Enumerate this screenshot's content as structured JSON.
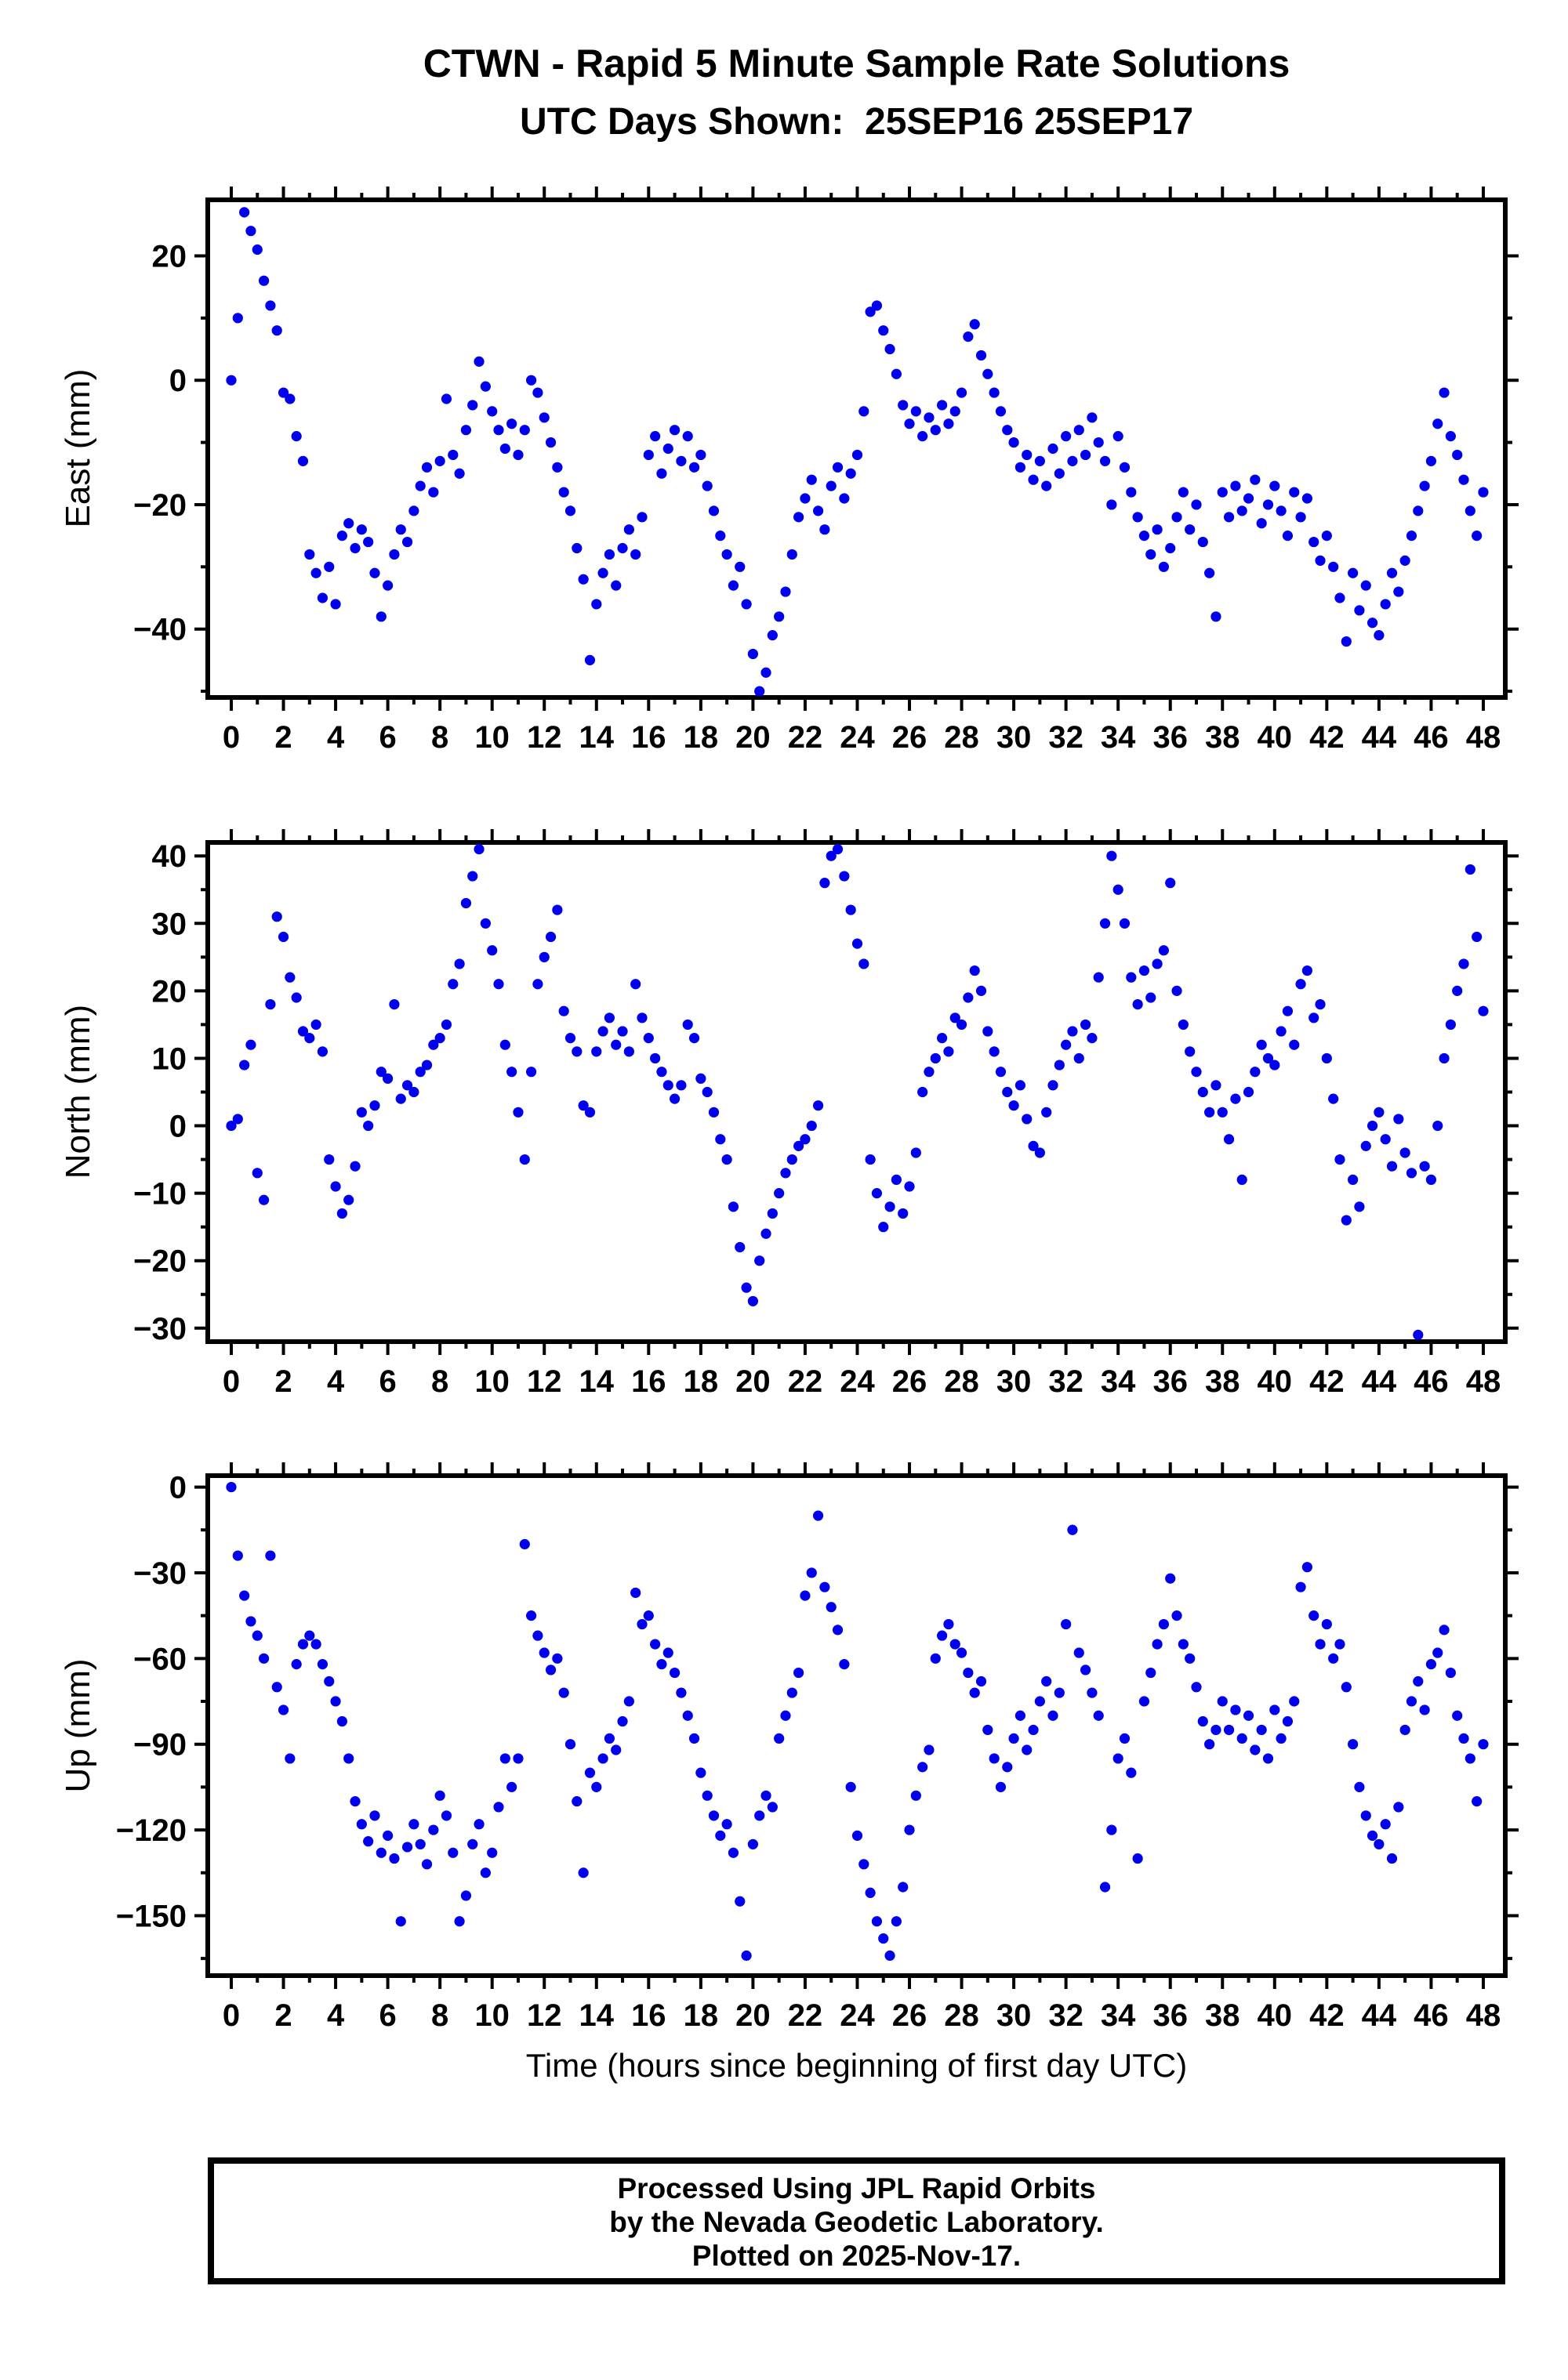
{
  "header": {
    "title": "CTWN - Rapid 5 Minute Sample Rate Solutions",
    "subtitle": "UTC Days Shown:  25SEP16 25SEP17"
  },
  "footer": {
    "line1": "Processed Using JPL Rapid Orbits",
    "line2": "by the Nevada Geodetic Laboratory.",
    "line3": "Plotted on 2025-Nov-17."
  },
  "chart_data": {
    "type": "scatter",
    "station": "CTWN",
    "xlabel": "Time (hours since beginning of first day UTC)",
    "x_range": [
      0,
      48
    ],
    "x_major_tick_step": 2,
    "x_minor_tick_step": 1,
    "sample_interval_hours": 0.25,
    "grid": "off",
    "marker": {
      "shape": "circle",
      "color": "#0000EE",
      "radius_px": 6.6
    },
    "panels": [
      {
        "id": "east",
        "ylabel": "East (mm)",
        "ylim": [
          -51,
          29
        ],
        "yticks": [
          20,
          0,
          -20,
          -40
        ],
        "y_minor_step": 10,
        "end_value": -18,
        "hourly_values": [
          [
            0,
            10,
            27,
            24
          ],
          [
            21,
            16,
            12,
            8
          ],
          [
            -2,
            -3,
            -9,
            -13
          ],
          [
            -28,
            -31,
            -35,
            -30
          ],
          [
            -36,
            -25,
            -23,
            -27
          ],
          [
            -24,
            -26,
            -31,
            -38
          ],
          [
            -33,
            -28,
            -24,
            -26
          ],
          [
            -21,
            -17,
            -14,
            -18
          ],
          [
            -13,
            -3,
            -12,
            -15
          ],
          [
            -8,
            -4,
            3,
            -1
          ],
          [
            -5,
            -8,
            -11,
            -7
          ],
          [
            -12,
            -8,
            0,
            -2
          ],
          [
            -6,
            -10,
            -14,
            -18
          ],
          [
            -21,
            -27,
            -32,
            -45
          ],
          [
            -36,
            -31,
            -28,
            -33
          ],
          [
            -27,
            -24,
            -28,
            -22
          ],
          [
            -12,
            -9,
            -15,
            -11
          ],
          [
            -8,
            -13,
            -9,
            -14
          ],
          [
            -12,
            -17,
            -21,
            -25
          ],
          [
            -28,
            -33,
            -30,
            -36
          ],
          [
            -44,
            -50,
            -47,
            -41
          ],
          [
            -38,
            -34,
            -28,
            -22
          ],
          [
            -19,
            -16,
            -21,
            -24
          ],
          [
            -17,
            -14,
            -19,
            -15
          ],
          [
            -12,
            -5,
            11,
            12
          ],
          [
            8,
            5,
            1,
            -4
          ],
          [
            -7,
            -5,
            -9,
            -6
          ],
          [
            -8,
            -4,
            -7,
            -5
          ],
          [
            -2,
            7,
            9,
            4
          ],
          [
            1,
            -2,
            -5,
            -8
          ],
          [
            -10,
            -14,
            -12,
            -16
          ],
          [
            -13,
            -17,
            -11,
            -15
          ],
          [
            -9,
            -13,
            -8,
            -12
          ],
          [
            -6,
            -10,
            -13,
            -20
          ],
          [
            -9,
            -14,
            -18,
            -22
          ],
          [
            -25,
            -28,
            -24,
            -30
          ],
          [
            -27,
            -22,
            -18,
            -24
          ],
          [
            -20,
            -26,
            -31,
            -38
          ],
          [
            -18,
            -22,
            -17,
            -21
          ],
          [
            -19,
            -16,
            -23,
            -20
          ],
          [
            -17,
            -21,
            -25,
            -18
          ],
          [
            -22,
            -19,
            -26,
            -29
          ],
          [
            -25,
            -30,
            -35,
            -42
          ],
          [
            -31,
            -37,
            -33,
            -39
          ],
          [
            -41,
            -36,
            -31,
            -34
          ],
          [
            -29,
            -25,
            -21,
            -17
          ],
          [
            -13,
            -7,
            -2,
            -9
          ],
          [
            -12,
            -16,
            -21,
            -25
          ]
        ]
      },
      {
        "id": "north",
        "ylabel": "North (mm)",
        "ylim": [
          -32,
          42
        ],
        "yticks": [
          40,
          30,
          20,
          10,
          0,
          -10,
          -20,
          -30
        ],
        "y_minor_step": 5,
        "end_value": 17,
        "hourly_values": [
          [
            0,
            1,
            9,
            12
          ],
          [
            -7,
            -11,
            18,
            31
          ],
          [
            28,
            22,
            19,
            14
          ],
          [
            13,
            15,
            11,
            -5
          ],
          [
            -9,
            -13,
            -11,
            -6
          ],
          [
            2,
            0,
            3,
            8
          ],
          [
            7,
            18,
            4,
            6
          ],
          [
            5,
            8,
            9,
            12
          ],
          [
            13,
            15,
            21,
            24
          ],
          [
            33,
            37,
            41,
            30
          ],
          [
            26,
            21,
            12,
            8
          ],
          [
            2,
            -5,
            8,
            21
          ],
          [
            25,
            28,
            32,
            17
          ],
          [
            13,
            11,
            3,
            2
          ],
          [
            11,
            14,
            16,
            12
          ],
          [
            14,
            11,
            21,
            16
          ],
          [
            13,
            10,
            8,
            6
          ],
          [
            4,
            6,
            15,
            13
          ],
          [
            7,
            5,
            2,
            -2
          ],
          [
            -5,
            -12,
            -18,
            -24
          ],
          [
            -26,
            -20,
            -16,
            -13
          ],
          [
            -10,
            -7,
            -5,
            -3
          ],
          [
            -2,
            0,
            3,
            36
          ],
          [
            40,
            41,
            37,
            32
          ],
          [
            27,
            24,
            -5,
            -10
          ],
          [
            -15,
            -12,
            -8,
            -13
          ],
          [
            -9,
            -4,
            5,
            8
          ],
          [
            10,
            13,
            11,
            16
          ],
          [
            15,
            19,
            23,
            20
          ],
          [
            14,
            11,
            8,
            5
          ],
          [
            3,
            6,
            1,
            -3
          ],
          [
            -4,
            2,
            6,
            9
          ],
          [
            12,
            14,
            10,
            15
          ],
          [
            13,
            22,
            30,
            40
          ],
          [
            35,
            30,
            22,
            18
          ],
          [
            23,
            19,
            24,
            26
          ],
          [
            36,
            20,
            15,
            11
          ],
          [
            8,
            5,
            2,
            6
          ],
          [
            2,
            -2,
            4,
            -8
          ],
          [
            5,
            8,
            12,
            10
          ],
          [
            9,
            14,
            17,
            12
          ],
          [
            21,
            23,
            16,
            18
          ],
          [
            10,
            4,
            -5,
            -14
          ],
          [
            -8,
            -12,
            -3,
            0
          ],
          [
            2,
            -2,
            -6,
            1
          ],
          [
            -4,
            -7,
            -31,
            -6
          ],
          [
            -8,
            0,
            10,
            15
          ],
          [
            20,
            24,
            38,
            28
          ]
        ]
      },
      {
        "id": "up",
        "ylabel": "Up (mm)",
        "ylim": [
          -171,
          4
        ],
        "yticks": [
          0,
          -30,
          -60,
          -90,
          -120,
          -150
        ],
        "y_minor_step": 15,
        "end_value": -90,
        "hourly_values": [
          [
            0,
            -24,
            -38,
            -47
          ],
          [
            -52,
            -60,
            -24,
            -70
          ],
          [
            -78,
            -95,
            -62,
            -55
          ],
          [
            -52,
            -55,
            -62,
            -68
          ],
          [
            -75,
            -82,
            -95,
            -110
          ],
          [
            -118,
            -124,
            -115,
            -128
          ],
          [
            -122,
            -130,
            -152,
            -126
          ],
          [
            -118,
            -125,
            -132,
            -120
          ],
          [
            -108,
            -115,
            -128,
            -152
          ],
          [
            -143,
            -125,
            -118,
            -135
          ],
          [
            -128,
            -112,
            -95,
            -105
          ],
          [
            -95,
            -20,
            -45,
            -52
          ],
          [
            -58,
            -64,
            -60,
            -72
          ],
          [
            -90,
            -110,
            -135,
            -100
          ],
          [
            -105,
            -95,
            -88,
            -92
          ],
          [
            -82,
            -75,
            -37,
            -48
          ],
          [
            -45,
            -55,
            -62,
            -58
          ],
          [
            -65,
            -72,
            -80,
            -88
          ],
          [
            -100,
            -108,
            -115,
            -122
          ],
          [
            -118,
            -128,
            -145,
            -164
          ],
          [
            -125,
            -115,
            -108,
            -112
          ],
          [
            -88,
            -80,
            -72,
            -65
          ],
          [
            -38,
            -30,
            -10,
            -35
          ],
          [
            -42,
            -50,
            -62,
            -105
          ],
          [
            -122,
            -132,
            -142,
            -152
          ],
          [
            -158,
            -164,
            -152,
            -140
          ],
          [
            -120,
            -108,
            -98,
            -92
          ],
          [
            -60,
            -52,
            -48,
            -55
          ],
          [
            -58,
            -65,
            -72,
            -68
          ],
          [
            -85,
            -95,
            -105,
            -98
          ],
          [
            -88,
            -80,
            -92,
            -85
          ],
          [
            -75,
            -68,
            -80,
            -72
          ],
          [
            -48,
            -15,
            -58,
            -64
          ],
          [
            -72,
            -80,
            -140,
            -120
          ],
          [
            -95,
            -88,
            -100,
            -130
          ],
          [
            -75,
            -65,
            -55,
            -48
          ],
          [
            -32,
            -45,
            -55,
            -60
          ],
          [
            -70,
            -82,
            -90,
            -85
          ],
          [
            -75,
            -85,
            -78,
            -88
          ],
          [
            -80,
            -92,
            -85,
            -95
          ],
          [
            -78,
            -88,
            -82,
            -75
          ],
          [
            -35,
            -28,
            -45,
            -55
          ],
          [
            -48,
            -60,
            -55,
            -70
          ],
          [
            -90,
            -105,
            -115,
            -122
          ],
          [
            -125,
            -118,
            -130,
            -112
          ],
          [
            -85,
            -75,
            -68,
            -78
          ],
          [
            -62,
            -58,
            -50,
            -65
          ],
          [
            -80,
            -88,
            -95,
            -110
          ]
        ]
      }
    ]
  }
}
